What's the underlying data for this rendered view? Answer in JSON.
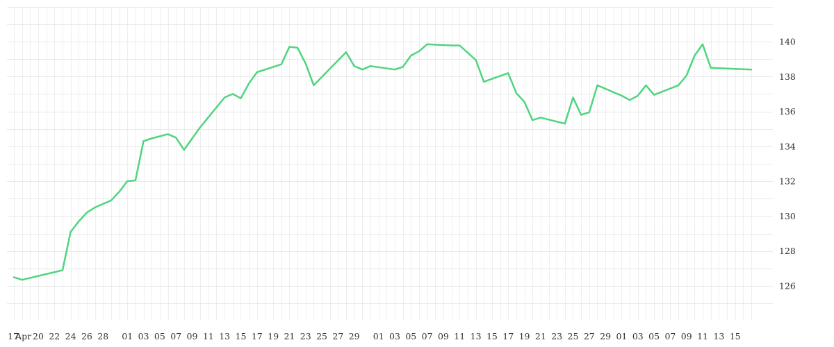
{
  "chart_data": {
    "type": "line",
    "title": "",
    "xlabel": "",
    "ylabel": "",
    "ylim": [
      124,
      142
    ],
    "y_axis_position": "right",
    "grid": true,
    "legend": "none",
    "line_color": "#4ed57f",
    "x_tick_labels": [
      "17",
      "Apr",
      "20",
      "22",
      "24",
      "26",
      "28",
      "01",
      "03",
      "05",
      "07",
      "09",
      "11",
      "13",
      "15",
      "17",
      "19",
      "21",
      "23",
      "25",
      "27",
      "29",
      "01",
      "03",
      "05",
      "07",
      "09",
      "11",
      "13",
      "15",
      "17",
      "19",
      "21",
      "23",
      "25",
      "27",
      "29",
      "01",
      "03",
      "05",
      "07",
      "09",
      "11",
      "13",
      "15"
    ],
    "y_tick_labels": [
      "126",
      "128",
      "130",
      "132",
      "134",
      "136",
      "138",
      "140"
    ],
    "series": [
      {
        "x": [
          "2023-04-17",
          "2023-04-18",
          "2023-04-23",
          "2023-04-24",
          "2023-04-25",
          "2023-04-26",
          "2023-04-27",
          "2023-04-29",
          "2023-04-30",
          "2023-05-01",
          "2023-05-02",
          "2023-05-03",
          "2023-05-04",
          "2023-05-06",
          "2023-05-07",
          "2023-05-08",
          "2023-05-09",
          "2023-05-10",
          "2023-05-13",
          "2023-05-14",
          "2023-05-15",
          "2023-05-16",
          "2023-05-17",
          "2023-05-20",
          "2023-05-21",
          "2023-05-22",
          "2023-05-23",
          "2023-05-24",
          "2023-05-28",
          "2023-05-29",
          "2023-05-30",
          "2023-05-31",
          "2023-06-03",
          "2023-06-04",
          "2023-06-05",
          "2023-06-06",
          "2023-06-07",
          "2023-06-10",
          "2023-06-11",
          "2023-06-13",
          "2023-06-14",
          "2023-06-17",
          "2023-06-18",
          "2023-06-19",
          "2023-06-20",
          "2023-06-21",
          "2023-06-24",
          "2023-06-25",
          "2023-06-26",
          "2023-06-27",
          "2023-06-28",
          "2023-07-01",
          "2023-07-02",
          "2023-07-03",
          "2023-07-04",
          "2023-07-05",
          "2023-07-08",
          "2023-07-09",
          "2023-07-10",
          "2023-07-11",
          "2023-07-12",
          "2023-07-17"
        ],
        "values": [
          126.5,
          126.35,
          126.9,
          129.1,
          129.7,
          130.2,
          130.5,
          130.9,
          131.4,
          132.0,
          132.05,
          134.3,
          134.45,
          134.7,
          134.5,
          133.8,
          134.45,
          135.1,
          136.8,
          137.0,
          136.75,
          137.6,
          138.25,
          138.7,
          139.7,
          139.65,
          138.75,
          137.5,
          139.4,
          138.6,
          138.4,
          138.6,
          138.4,
          138.55,
          139.2,
          139.45,
          139.85,
          139.78,
          139.78,
          138.95,
          137.7,
          138.2,
          137.05,
          136.55,
          135.5,
          135.65,
          135.3,
          136.8,
          135.8,
          135.95,
          137.5,
          136.9,
          136.65,
          136.9,
          137.5,
          136.95,
          137.5,
          138.05,
          139.2,
          139.85,
          138.5,
          138.4
        ]
      }
    ]
  }
}
